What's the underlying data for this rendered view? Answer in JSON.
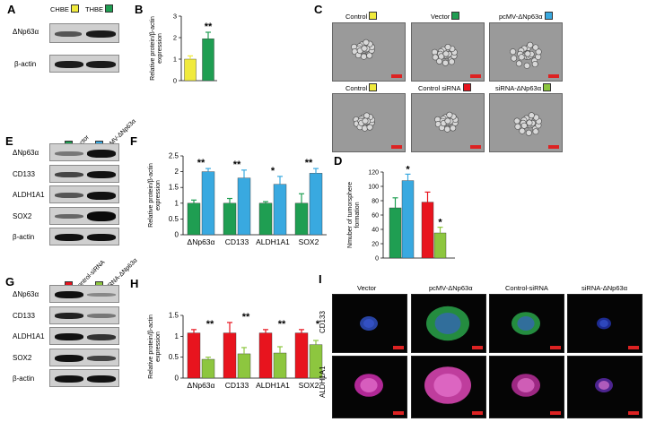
{
  "panels": {
    "A": {
      "letter": "A",
      "legend": [
        {
          "label": "CHBE",
          "color": "#f0ea3c"
        },
        {
          "label": "THBE",
          "color": "#1f9e52"
        }
      ],
      "rows": [
        "ΔNp63α",
        "β-actin"
      ]
    },
    "B": {
      "letter": "B",
      "ylabel": "Relative protein/β-actin expression",
      "sig": "**"
    },
    "C": {
      "letter": "C",
      "images": [
        {
          "label": "Control",
          "color": "#f0ea3c"
        },
        {
          "label": "Vector",
          "color": "#1f9e52"
        },
        {
          "label": "pcMV-ΔNp63α",
          "color": "#39a9e0"
        },
        {
          "label": "Control",
          "color": "#f0ea3c"
        },
        {
          "label": "Control siRNA",
          "color": "#e8141e"
        },
        {
          "label": "siRNA-ΔNp63α",
          "color": "#8dc63f"
        }
      ]
    },
    "D": {
      "letter": "D",
      "ylabel": "Nmuber of tumorsphere formation"
    },
    "E": {
      "letter": "E",
      "legend": [
        {
          "label": "Vector",
          "color": "#1f9e52"
        },
        {
          "label": "pcMV-ΔNp63α",
          "color": "#39a9e0"
        }
      ],
      "rows": [
        "ΔNp63α",
        "CD133",
        "ALDH1A1",
        "SOX2",
        "β-actin"
      ]
    },
    "F": {
      "letter": "F",
      "ylabel": "Relative protein/β-actin expression"
    },
    "G": {
      "letter": "G",
      "legend": [
        {
          "label": "Control-siRNA",
          "color": "#e8141e"
        },
        {
          "label": "siRNA-ΔNp63α",
          "color": "#8dc63f"
        }
      ],
      "rows": [
        "ΔNp63α",
        "CD133",
        "ALDH1A1",
        "SOX2",
        "β-actin"
      ]
    },
    "H": {
      "letter": "H",
      "ylabel": "Relative protein/β-actin expression"
    },
    "I": {
      "letter": "I",
      "columns": [
        "Vector",
        "pcMV-ΔNp63α",
        "Control-siRNA",
        "siRNA-ΔNp63α"
      ],
      "rows": [
        "CD133",
        "ALDH1A1"
      ]
    }
  },
  "chart_data": [
    {
      "id": "B",
      "type": "bar",
      "categories": [
        "CHBE",
        "THBE"
      ],
      "values": [
        1.0,
        1.95
      ],
      "errors": [
        0.15,
        0.3
      ],
      "colors": [
        "#f0ea3c",
        "#1f9e52"
      ],
      "ylim": [
        0,
        3
      ],
      "yticks": [
        0,
        1,
        2,
        3
      ],
      "ylabel": "Relative protein/β-actin expression",
      "significance": [
        "",
        "**"
      ]
    },
    {
      "id": "D",
      "type": "bar",
      "categories": [
        "Vector",
        "pcMV-ΔNp63α",
        "Control siRNA",
        "siRNA-ΔNp63α"
      ],
      "values": [
        70,
        108,
        78,
        35
      ],
      "errors": [
        14,
        9,
        14,
        8
      ],
      "colors": [
        "#1f9e52",
        "#39a9e0",
        "#e8141e",
        "#8dc63f"
      ],
      "ylim": [
        0,
        120
      ],
      "yticks": [
        0,
        20,
        40,
        60,
        80,
        100,
        120
      ],
      "ylabel": "Nmuber of tumorsphere formation",
      "significance": [
        "",
        "*",
        "",
        "*"
      ]
    },
    {
      "id": "F",
      "type": "bar",
      "categories": [
        "ΔNp63α",
        "CD133",
        "ALDH1A1",
        "SOX2"
      ],
      "series": [
        {
          "name": "Vector",
          "color": "#1f9e52",
          "values": [
            1.0,
            1.0,
            1.0,
            1.0
          ],
          "errors": [
            0.1,
            0.15,
            0.05,
            0.3
          ]
        },
        {
          "name": "pcMV-ΔNp63α",
          "color": "#39a9e0",
          "values": [
            2.0,
            1.8,
            1.6,
            1.95
          ],
          "errors": [
            0.1,
            0.25,
            0.25,
            0.15
          ]
        }
      ],
      "ylim": [
        0,
        2.5
      ],
      "yticks": [
        0,
        0.5,
        1,
        1.5,
        2,
        2.5
      ],
      "ylabel": "Relative protein/β-actin expression",
      "significance": [
        "**",
        "**",
        "*",
        "**"
      ]
    },
    {
      "id": "H",
      "type": "bar",
      "categories": [
        "ΔNp63α",
        "CD133",
        "ALDH1A1",
        "SOX2"
      ],
      "series": [
        {
          "name": "Control-siRNA",
          "color": "#e8141e",
          "values": [
            1.08,
            1.08,
            1.08,
            1.08
          ],
          "errors": [
            0.08,
            0.25,
            0.08,
            0.08
          ]
        },
        {
          "name": "siRNA-ΔNp63α",
          "color": "#8dc63f",
          "values": [
            0.45,
            0.58,
            0.6,
            0.8
          ],
          "errors": [
            0.05,
            0.15,
            0.15,
            0.1
          ]
        }
      ],
      "ylim": [
        0,
        1.5
      ],
      "yticks": [
        0,
        0.5,
        1,
        1.5
      ],
      "ylabel": "Relative protein/β-actin expression",
      "significance": [
        "**",
        "**",
        "**",
        "*"
      ]
    }
  ]
}
